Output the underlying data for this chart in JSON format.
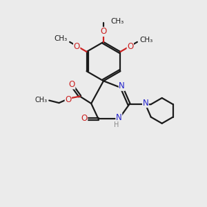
{
  "background_color": "#ebebeb",
  "bond_color": "#1a1a1a",
  "nitrogen_color": "#2222cc",
  "oxygen_color": "#cc2222",
  "line_width": 1.6,
  "font_size": 8.5,
  "xlim": [
    0,
    10
  ],
  "ylim": [
    0,
    10
  ]
}
